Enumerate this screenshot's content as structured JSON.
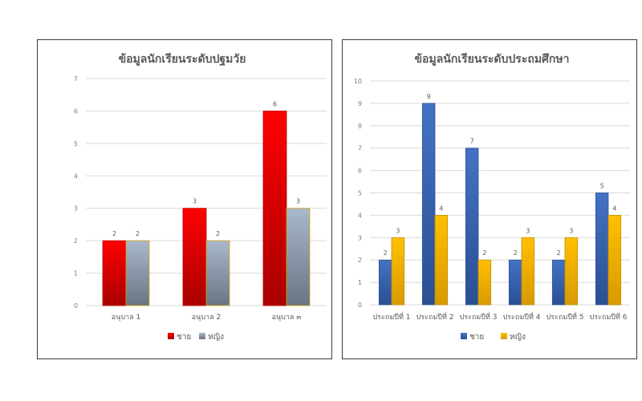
{
  "chart_data": [
    {
      "type": "bar",
      "title": "ข้อมูลนักเรียนระดับปฐมวัย",
      "categories": [
        "อนุบาล 1",
        "อนุบาล 2",
        "อนุบาล ๓"
      ],
      "series": [
        {
          "name": "ชาย",
          "values": [
            2,
            3,
            6
          ]
        },
        {
          "name": "หญิง",
          "values": [
            2,
            2,
            3
          ]
        }
      ],
      "ylim": [
        0,
        7
      ],
      "yticks": [
        "0",
        "1",
        "2",
        "3",
        "4",
        "5",
        "6",
        "7"
      ],
      "grid": true,
      "legend": "bottom",
      "colors": {
        "series0_top": "#ff0000",
        "series0_bottom": "#a80000",
        "series0_edge": "#c00000",
        "series1_top": "#aab8cc",
        "series1_bottom": "#6a7484",
        "series1_edge": "#d4a500"
      }
    },
    {
      "type": "bar",
      "title": "ข้อมูลนักเรียนระดับประถมศึกษา",
      "categories": [
        "ประถมปีที่ 1",
        "ประถมปีที่ 2",
        "ประถมปีที่ 3",
        "ประถมปีที่ 4",
        "ประถมปีที่ 5",
        "ประถมปีที่ 6"
      ],
      "series": [
        {
          "name": "ชาย",
          "values": [
            2,
            9,
            7,
            2,
            2,
            5
          ]
        },
        {
          "name": "หญิง",
          "values": [
            3,
            4,
            2,
            3,
            3,
            4
          ]
        }
      ],
      "ylim": [
        0,
        10
      ],
      "yticks": [
        "0",
        "1",
        "2",
        "3",
        "4",
        "5",
        "6",
        "7",
        "8",
        "9",
        "10"
      ],
      "grid": true,
      "legend": "bottom",
      "colors": {
        "series0_top": "#4472c4",
        "series0_bottom": "#2a4f92",
        "series0_edge": "#2f5597",
        "series1_top": "#ffc000",
        "series1_bottom": "#d89a00",
        "series1_edge": "#c08f00"
      }
    }
  ]
}
